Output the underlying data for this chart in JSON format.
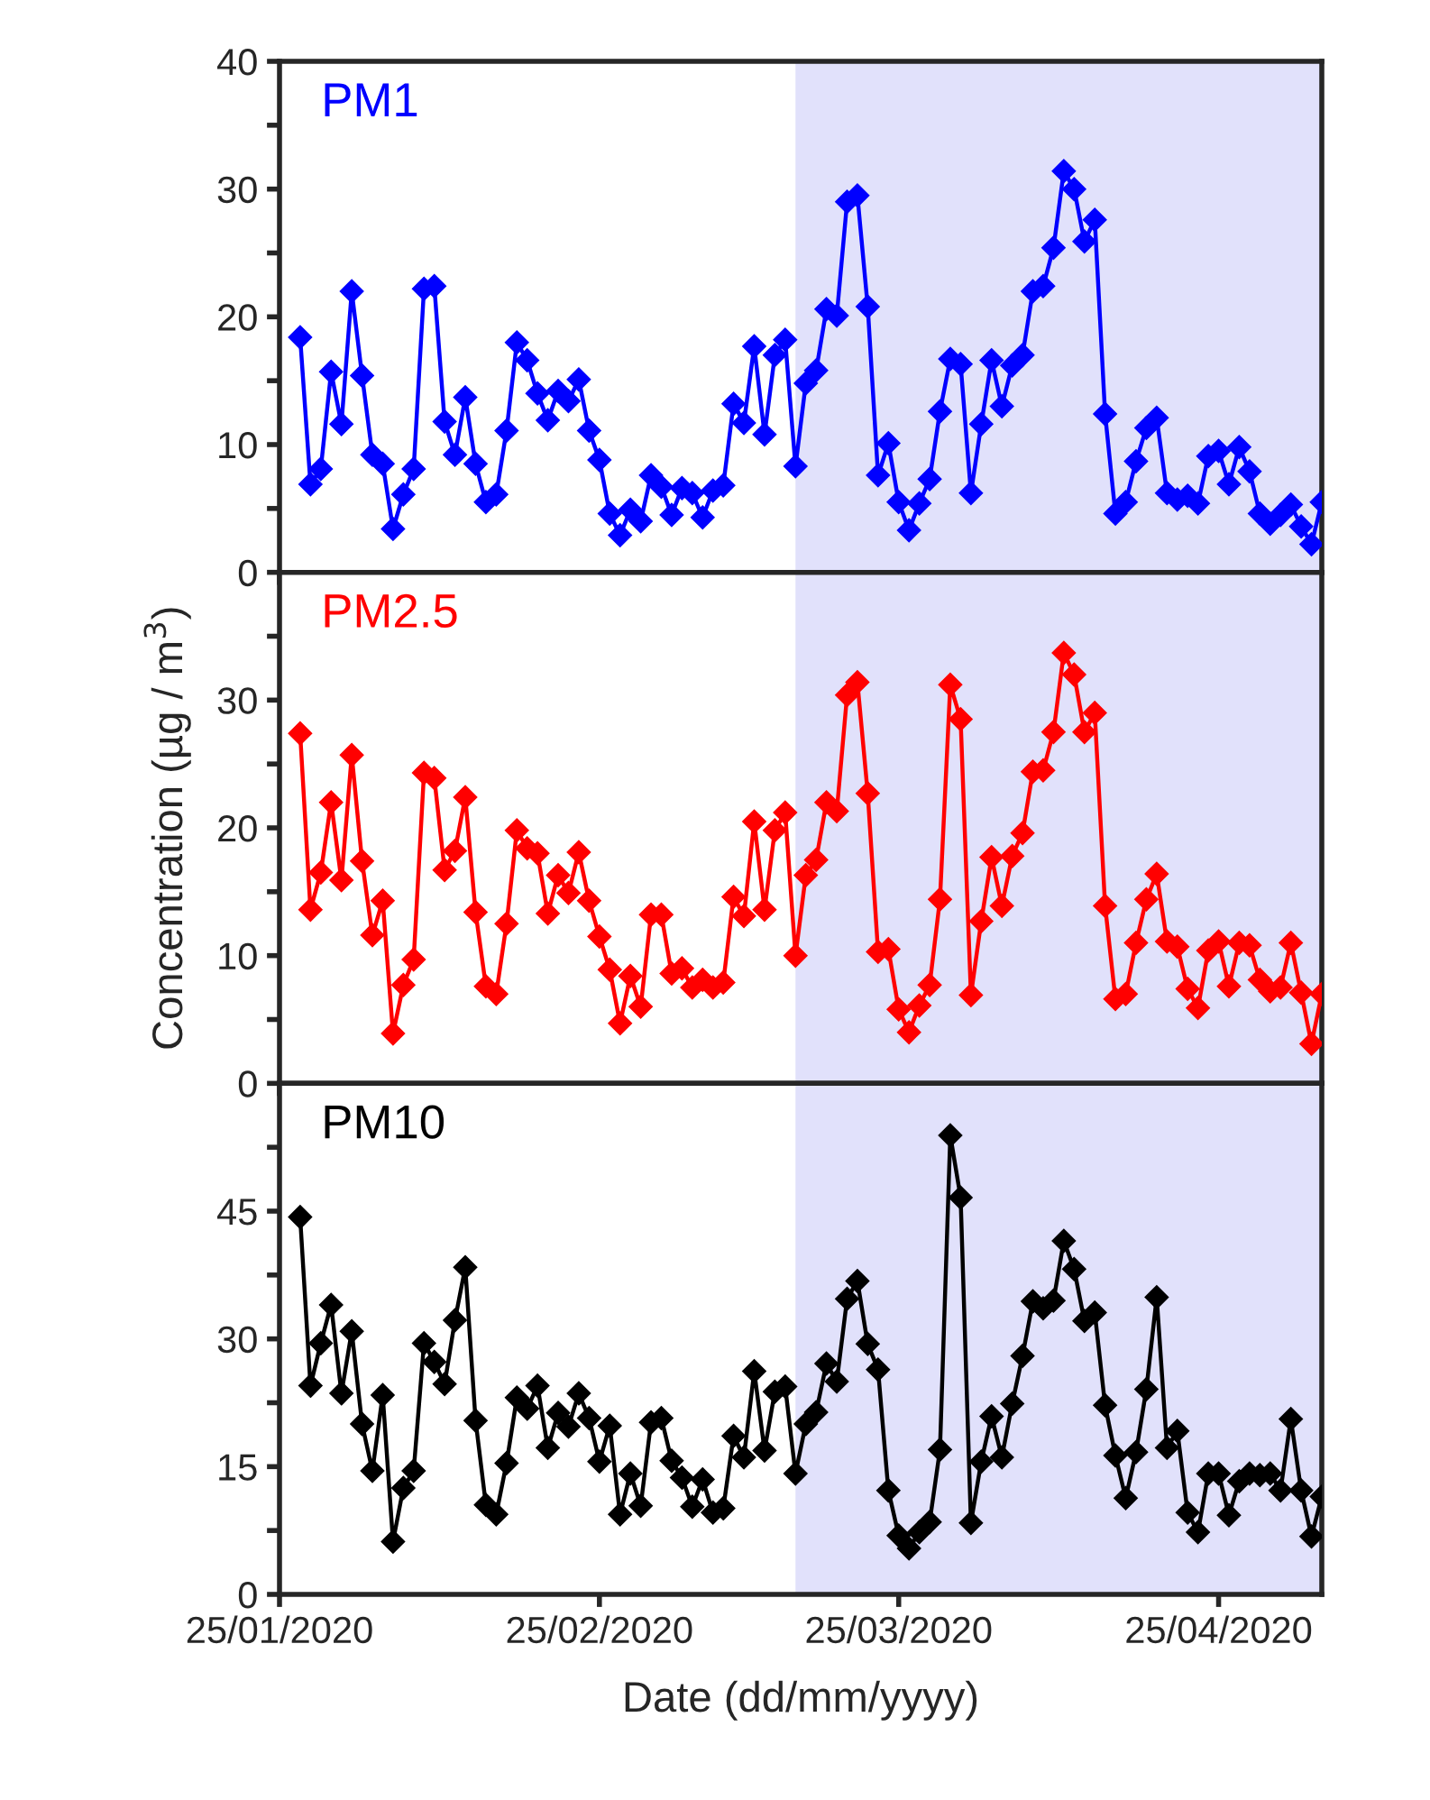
{
  "chart_data": [
    {
      "type": "line",
      "marker": "diamond",
      "tick_labels": "y",
      "x": [
        "2020-01-27",
        "2020-01-28",
        "2020-01-29",
        "2020-01-30",
        "2020-01-31",
        "2020-02-01",
        "2020-02-02",
        "2020-02-03",
        "2020-02-04",
        "2020-02-05",
        "2020-02-06",
        "2020-02-07",
        "2020-02-08",
        "2020-02-09",
        "2020-02-10",
        "2020-02-11",
        "2020-02-12",
        "2020-02-13",
        "2020-02-14",
        "2020-02-15",
        "2020-02-16",
        "2020-02-17",
        "2020-02-18",
        "2020-02-19",
        "2020-02-20",
        "2020-02-21",
        "2020-02-22",
        "2020-02-23",
        "2020-02-24",
        "2020-02-25",
        "2020-02-26",
        "2020-02-27",
        "2020-02-28",
        "2020-02-29",
        "2020-03-01",
        "2020-03-02",
        "2020-03-03",
        "2020-03-04",
        "2020-03-05",
        "2020-03-06",
        "2020-03-07",
        "2020-03-08",
        "2020-03-09",
        "2020-03-10",
        "2020-03-11",
        "2020-03-12",
        "2020-03-13",
        "2020-03-14",
        "2020-03-15",
        "2020-03-16",
        "2020-03-17",
        "2020-03-18",
        "2020-03-19",
        "2020-03-20",
        "2020-03-21",
        "2020-03-22",
        "2020-03-23",
        "2020-03-24",
        "2020-03-25",
        "2020-03-26",
        "2020-03-27",
        "2020-03-28",
        "2020-03-29",
        "2020-03-30",
        "2020-03-31",
        "2020-04-01",
        "2020-04-02",
        "2020-04-03",
        "2020-04-04",
        "2020-04-05",
        "2020-04-06",
        "2020-04-07",
        "2020-04-08",
        "2020-04-09",
        "2020-04-10",
        "2020-04-11",
        "2020-04-12",
        "2020-04-13",
        "2020-04-14",
        "2020-04-15",
        "2020-04-16",
        "2020-04-17",
        "2020-04-18",
        "2020-04-19",
        "2020-04-20",
        "2020-04-21",
        "2020-04-22",
        "2020-04-23",
        "2020-04-24",
        "2020-04-25",
        "2020-04-26",
        "2020-04-27",
        "2020-04-28",
        "2020-04-29",
        "2020-04-30",
        "2020-05-01",
        "2020-05-02",
        "2020-05-03",
        "2020-05-04",
        "2020-05-05"
      ],
      "series": [
        {
          "name": "PM1",
          "color": "#0000ff",
          "values": [
            18.4,
            6.9,
            8.1,
            15.7,
            11.6,
            22.0,
            15.4,
            9.2,
            8.5,
            3.4,
            6.1,
            8.1,
            22.2,
            22.4,
            11.8,
            9.2,
            13.7,
            8.5,
            5.5,
            6.1,
            11.1,
            18.0,
            16.6,
            14.0,
            11.9,
            14.2,
            13.4,
            15.1,
            11.1,
            8.8,
            4.6,
            2.9,
            4.9,
            4.0,
            7.6,
            6.7,
            4.5,
            6.6,
            6.2,
            4.3,
            6.4,
            6.8,
            13.2,
            11.7,
            17.7,
            10.8,
            17.0,
            18.2,
            8.3,
            14.8,
            15.8,
            20.6,
            20.1,
            29.0,
            29.5,
            20.8,
            7.6,
            10.1,
            5.5,
            3.3,
            5.4,
            7.3,
            12.6,
            16.7,
            16.3,
            6.2,
            11.6,
            16.6,
            13.0,
            16.2,
            17.0,
            22.0,
            22.4,
            25.4,
            31.4,
            30.0,
            25.9,
            27.6,
            12.4,
            4.6,
            5.5,
            8.7,
            11.3,
            12.1,
            6.2,
            5.7,
            6.0,
            5.4,
            9.1,
            9.5,
            6.9,
            9.8,
            7.9,
            4.6,
            3.8,
            4.5,
            5.3,
            3.6,
            2.2,
            5.5
          ]
        }
      ],
      "xlim": [
        "2020-01-25",
        "2020-05-05"
      ],
      "xticks": [
        {
          "value": "2020-01-25",
          "label": null
        },
        {
          "value": "2020-02-25",
          "label": null
        },
        {
          "value": "2020-03-25",
          "label": null
        },
        {
          "value": "2020-04-25",
          "label": null
        }
      ],
      "ylim": [
        0,
        40
      ],
      "yticks": [
        0,
        {
          "value": 5,
          "label": null
        },
        10,
        {
          "value": 15,
          "label": null
        },
        20,
        {
          "value": 25,
          "label": null
        },
        30,
        {
          "value": 35,
          "label": null
        },
        40
      ],
      "bands": [
        {
          "axis": "x",
          "from": "2020-03-15",
          "to": "2020-05-05",
          "color": "#e1e1fb"
        }
      ]
    },
    {
      "type": "line",
      "marker": "diamond",
      "tick_labels": "y",
      "ylabel": "Concentration (µg / m$^{3}$)",
      "x": [
        "2020-01-27",
        "2020-01-28",
        "2020-01-29",
        "2020-01-30",
        "2020-01-31",
        "2020-02-01",
        "2020-02-02",
        "2020-02-03",
        "2020-02-04",
        "2020-02-05",
        "2020-02-06",
        "2020-02-07",
        "2020-02-08",
        "2020-02-09",
        "2020-02-10",
        "2020-02-11",
        "2020-02-12",
        "2020-02-13",
        "2020-02-14",
        "2020-02-15",
        "2020-02-16",
        "2020-02-17",
        "2020-02-18",
        "2020-02-19",
        "2020-02-20",
        "2020-02-21",
        "2020-02-22",
        "2020-02-23",
        "2020-02-24",
        "2020-02-25",
        "2020-02-26",
        "2020-02-27",
        "2020-02-28",
        "2020-02-29",
        "2020-03-01",
        "2020-03-02",
        "2020-03-03",
        "2020-03-04",
        "2020-03-05",
        "2020-03-06",
        "2020-03-07",
        "2020-03-08",
        "2020-03-09",
        "2020-03-10",
        "2020-03-11",
        "2020-03-12",
        "2020-03-13",
        "2020-03-14",
        "2020-03-15",
        "2020-03-16",
        "2020-03-17",
        "2020-03-18",
        "2020-03-19",
        "2020-03-20",
        "2020-03-21",
        "2020-03-22",
        "2020-03-23",
        "2020-03-24",
        "2020-03-25",
        "2020-03-26",
        "2020-03-27",
        "2020-03-28",
        "2020-03-29",
        "2020-03-30",
        "2020-03-31",
        "2020-04-01",
        "2020-04-02",
        "2020-04-03",
        "2020-04-04",
        "2020-04-05",
        "2020-04-06",
        "2020-04-07",
        "2020-04-08",
        "2020-04-09",
        "2020-04-10",
        "2020-04-11",
        "2020-04-12",
        "2020-04-13",
        "2020-04-14",
        "2020-04-15",
        "2020-04-16",
        "2020-04-17",
        "2020-04-18",
        "2020-04-19",
        "2020-04-20",
        "2020-04-21",
        "2020-04-22",
        "2020-04-23",
        "2020-04-24",
        "2020-04-25",
        "2020-04-26",
        "2020-04-27",
        "2020-04-28",
        "2020-04-29",
        "2020-04-30",
        "2020-05-01",
        "2020-05-02",
        "2020-05-03",
        "2020-05-04",
        "2020-05-05"
      ],
      "series": [
        {
          "name": "PM2.5",
          "color": "#ff0000",
          "values": [
            27.4,
            13.6,
            16.5,
            22.0,
            15.9,
            25.7,
            17.4,
            11.6,
            14.3,
            3.9,
            7.7,
            9.7,
            24.3,
            23.9,
            16.7,
            18.2,
            22.4,
            13.4,
            7.6,
            7.0,
            12.5,
            19.8,
            18.4,
            18.0,
            13.3,
            16.3,
            14.9,
            18.1,
            14.3,
            11.5,
            8.9,
            4.7,
            8.4,
            6.0,
            13.2,
            13.2,
            8.6,
            9.0,
            7.5,
            8.1,
            7.5,
            7.9,
            14.6,
            13.1,
            20.5,
            13.6,
            19.8,
            21.2,
            10.0,
            16.3,
            17.5,
            22.0,
            21.3,
            30.4,
            31.4,
            22.7,
            10.3,
            10.5,
            5.8,
            4.0,
            6.1,
            7.7,
            14.4,
            31.2,
            28.5,
            6.9,
            12.7,
            17.7,
            13.9,
            17.8,
            19.6,
            24.4,
            24.5,
            27.5,
            33.7,
            32.0,
            27.5,
            29.0,
            13.9,
            6.6,
            7.0,
            11.0,
            14.4,
            16.4,
            11.1,
            10.7,
            7.4,
            5.9,
            10.4,
            11.1,
            7.6,
            11.0,
            10.8,
            8.1,
            7.2,
            7.5,
            11.0,
            7.1,
            3.1,
            7.0
          ]
        }
      ],
      "xlim": [
        "2020-01-25",
        "2020-05-05"
      ],
      "xticks": [
        {
          "value": "2020-01-25",
          "label": null
        },
        {
          "value": "2020-02-25",
          "label": null
        },
        {
          "value": "2020-03-25",
          "label": null
        },
        {
          "value": "2020-04-25",
          "label": null
        }
      ],
      "ylim": [
        0,
        40
      ],
      "yticks": [
        0,
        {
          "value": 5,
          "label": null
        },
        10,
        {
          "value": 15,
          "label": null
        },
        20,
        {
          "value": 25,
          "label": null
        },
        30,
        {
          "value": 35,
          "label": null
        }
      ],
      "bands": [
        {
          "axis": "x",
          "from": "2020-03-15",
          "to": "2020-05-05",
          "color": "#e1e1fb"
        }
      ]
    },
    {
      "type": "line",
      "marker": "diamond",
      "xlabel": "Date (dd/mm/yyyy)",
      "x": [
        "2020-01-27",
        "2020-01-28",
        "2020-01-29",
        "2020-01-30",
        "2020-01-31",
        "2020-02-01",
        "2020-02-02",
        "2020-02-03",
        "2020-02-04",
        "2020-02-05",
        "2020-02-06",
        "2020-02-07",
        "2020-02-08",
        "2020-02-09",
        "2020-02-10",
        "2020-02-11",
        "2020-02-12",
        "2020-02-13",
        "2020-02-14",
        "2020-02-15",
        "2020-02-16",
        "2020-02-17",
        "2020-02-18",
        "2020-02-19",
        "2020-02-20",
        "2020-02-21",
        "2020-02-22",
        "2020-02-23",
        "2020-02-24",
        "2020-02-25",
        "2020-02-26",
        "2020-02-27",
        "2020-02-28",
        "2020-02-29",
        "2020-03-01",
        "2020-03-02",
        "2020-03-03",
        "2020-03-04",
        "2020-03-05",
        "2020-03-06",
        "2020-03-07",
        "2020-03-08",
        "2020-03-09",
        "2020-03-10",
        "2020-03-11",
        "2020-03-12",
        "2020-03-13",
        "2020-03-14",
        "2020-03-15",
        "2020-03-16",
        "2020-03-17",
        "2020-03-18",
        "2020-03-19",
        "2020-03-20",
        "2020-03-21",
        "2020-03-22",
        "2020-03-23",
        "2020-03-24",
        "2020-03-25",
        "2020-03-26",
        "2020-03-27",
        "2020-03-28",
        "2020-03-29",
        "2020-03-30",
        "2020-03-31",
        "2020-04-01",
        "2020-04-02",
        "2020-04-03",
        "2020-04-04",
        "2020-04-05",
        "2020-04-06",
        "2020-04-07",
        "2020-04-08",
        "2020-04-09",
        "2020-04-10",
        "2020-04-11",
        "2020-04-12",
        "2020-04-13",
        "2020-04-14",
        "2020-04-15",
        "2020-04-16",
        "2020-04-17",
        "2020-04-18",
        "2020-04-19",
        "2020-04-20",
        "2020-04-21",
        "2020-04-22",
        "2020-04-23",
        "2020-04-24",
        "2020-04-25",
        "2020-04-26",
        "2020-04-27",
        "2020-04-28",
        "2020-04-29",
        "2020-04-30",
        "2020-05-01",
        "2020-05-02",
        "2020-05-03",
        "2020-05-04",
        "2020-05-05"
      ],
      "series": [
        {
          "name": "PM10",
          "color": "#000000",
          "values": [
            44.3,
            24.5,
            29.5,
            34.0,
            23.6,
            30.9,
            20.0,
            14.5,
            23.4,
            6.2,
            12.5,
            14.5,
            29.5,
            27.3,
            24.7,
            32.2,
            38.4,
            20.4,
            10.5,
            9.4,
            15.4,
            23.1,
            21.8,
            24.5,
            17.2,
            21.3,
            19.7,
            23.6,
            20.7,
            15.6,
            19.8,
            9.4,
            14.2,
            10.4,
            20.2,
            20.7,
            15.7,
            13.7,
            10.3,
            13.5,
            9.6,
            10.1,
            18.6,
            16.1,
            26.2,
            16.9,
            23.8,
            24.4,
            14.2,
            20.0,
            21.4,
            27.1,
            25.0,
            34.7,
            36.8,
            29.4,
            26.4,
            12.2,
            6.9,
            5.4,
            7.3,
            8.5,
            17.0,
            53.9,
            46.6,
            8.4,
            15.6,
            20.9,
            16.1,
            22.4,
            28.0,
            34.4,
            33.6,
            34.5,
            41.5,
            38.2,
            32.1,
            33.1,
            22.2,
            16.3,
            11.3,
            16.7,
            24.1,
            34.9,
            17.2,
            19.2,
            9.6,
            7.3,
            14.2,
            14.2,
            9.3,
            13.3,
            14.2,
            14.0,
            14.2,
            12.2,
            20.6,
            12.2,
            6.8,
            11.5
          ]
        }
      ],
      "xlim": [
        "2020-01-25",
        "2020-05-05"
      ],
      "xticks": [
        {
          "value": "2020-01-25",
          "label": "25/01/2020"
        },
        {
          "value": "2020-02-25",
          "label": "25/02/2020"
        },
        {
          "value": "2020-03-25",
          "label": "25/03/2020"
        },
        {
          "value": "2020-04-25",
          "label": "25/04/2020"
        }
      ],
      "ylim": [
        0,
        60
      ],
      "yticks": [
        0,
        {
          "value": 7.5,
          "label": null
        },
        15,
        {
          "value": 22.5,
          "label": null
        },
        30,
        {
          "value": 37.5,
          "label": null
        },
        45,
        {
          "value": 52.5,
          "label": null
        }
      ],
      "bands": [
        {
          "axis": "x",
          "from": "2020-03-15",
          "to": "2020-05-05",
          "color": "#e1e1fb"
        }
      ]
    }
  ]
}
